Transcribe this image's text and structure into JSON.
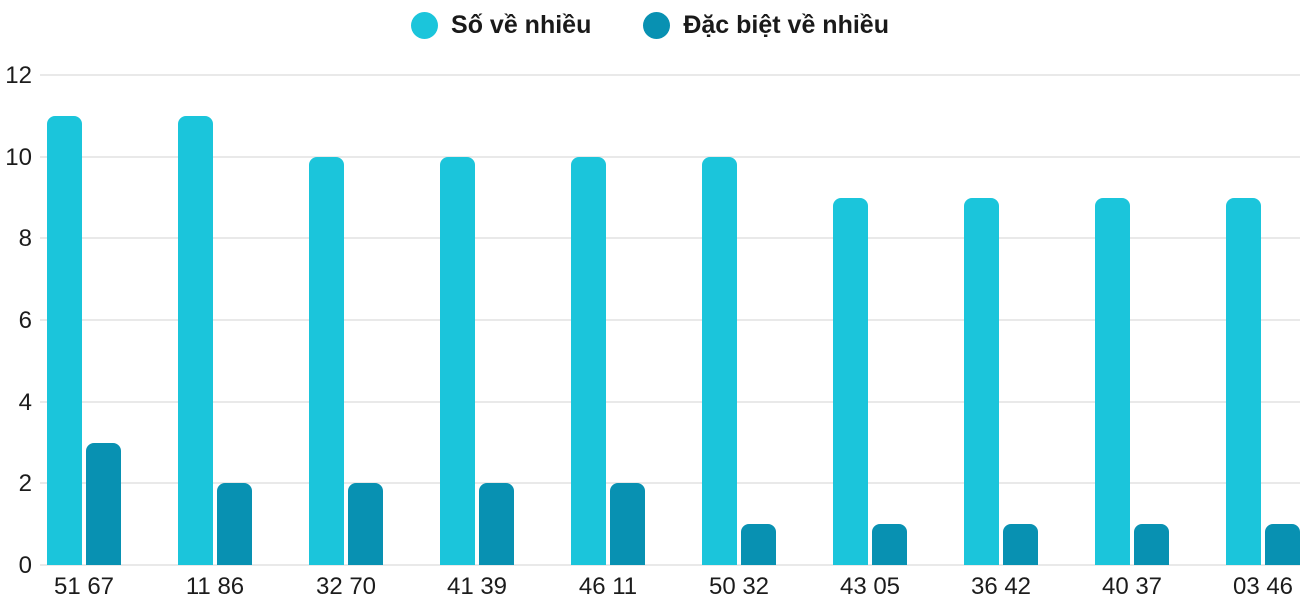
{
  "legend": {
    "items": [
      {
        "label": "Số về nhiều",
        "color": "#1BC5DB"
      },
      {
        "label": "Đặc biệt về nhiều",
        "color": "#0891B2"
      }
    ]
  },
  "chart_data": {
    "type": "bar",
    "title": "",
    "xlabel": "",
    "ylabel": "",
    "categories": [
      "51 67",
      "11 86",
      "32 70",
      "41 39",
      "46 11",
      "50 32",
      "43 05",
      "36 42",
      "40 37",
      "03 46"
    ],
    "series": [
      {
        "name": "Số về nhiều",
        "color": "#1BC5DB",
        "values": [
          11,
          11,
          10,
          10,
          10,
          10,
          9,
          9,
          9,
          9
        ]
      },
      {
        "name": "Đặc biệt về nhiều",
        "color": "#0891B2",
        "values": [
          3,
          2,
          2,
          2,
          2,
          1,
          1,
          1,
          1,
          1
        ]
      }
    ],
    "yticks": [
      0,
      2,
      4,
      6,
      8,
      10,
      12
    ],
    "ylim": [
      0,
      12
    ],
    "grid": true,
    "legend_position": "top-center"
  },
  "colors": {
    "background": "#ffffff",
    "gridline": "#e9e9e9",
    "axis_text": "#1c1c1c"
  }
}
